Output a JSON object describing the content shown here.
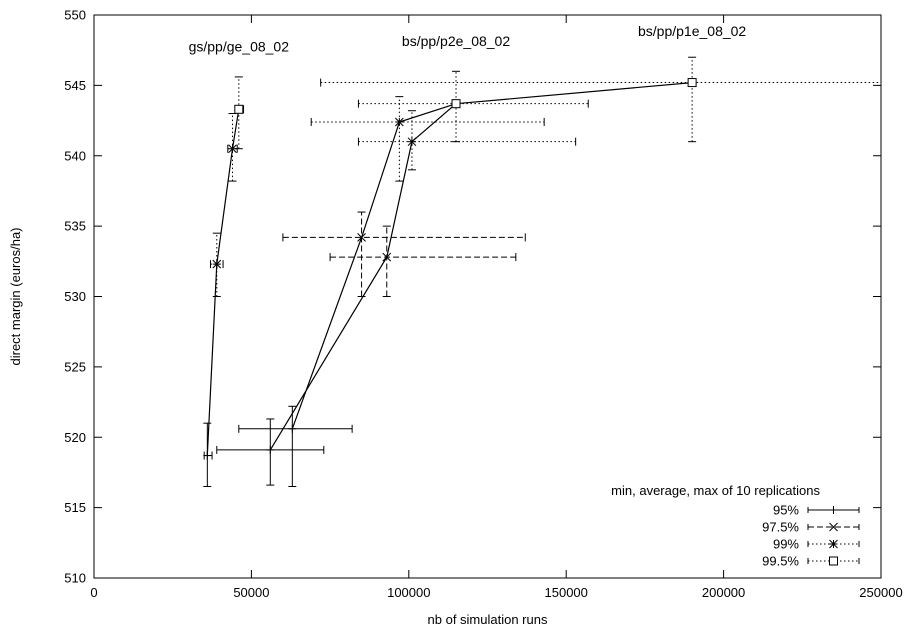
{
  "chart_data": {
    "type": "line",
    "title": "",
    "xlabel": "nb of simulation runs",
    "ylabel": "direct margin (euros/ha)",
    "xlim": [
      0,
      250000
    ],
    "ylim": [
      510,
      550
    ],
    "xticks": [
      "0",
      "50000",
      "100000",
      "150000",
      "200000",
      "250000"
    ],
    "yticks": [
      "510",
      "515",
      "520",
      "525",
      "530",
      "535",
      "540",
      "545",
      "550"
    ],
    "grid": false,
    "legend_position": "bottom-right",
    "legend_title": "min, average, max of 10 replications",
    "series": [
      {
        "name": "95%",
        "style": "solid",
        "marker": "plus",
        "points": [
          {
            "x": 36000,
            "y": 518.7,
            "xmin": 35000,
            "xmax": 37500,
            "ymin": 516.5,
            "ymax": 521.0
          },
          {
            "x": 56000,
            "y": 519.1,
            "xmin": 39000,
            "xmax": 73000,
            "ymin": 516.6,
            "ymax": 521.3
          },
          {
            "x": 63000,
            "y": 520.6,
            "xmin": 46000,
            "xmax": 82000,
            "ymin": 516.5,
            "ymax": 522.2
          }
        ]
      },
      {
        "name": "97.5%",
        "style": "dashed",
        "marker": "x",
        "points": [
          {
            "x": 85000,
            "y": 534.2,
            "xmin": 60000,
            "xmax": 137000,
            "ymin": 530.0,
            "ymax": 536.0
          },
          {
            "x": 93000,
            "y": 532.8,
            "xmin": 75000,
            "xmax": 134000,
            "ymin": 530.0,
            "ymax": 535.0
          }
        ]
      },
      {
        "name": "99%",
        "style": "dotted",
        "marker": "star",
        "points": [
          {
            "x": 39000,
            "y": 532.3,
            "xmin": 37000,
            "xmax": 41000,
            "ymin": 530.0,
            "ymax": 534.5
          },
          {
            "x": 44000,
            "y": 540.5,
            "xmin": 42500,
            "xmax": 45500,
            "ymin": 538.2,
            "ymax": 543.0
          },
          {
            "x": 97000,
            "y": 542.4,
            "xmin": 69000,
            "xmax": 143000,
            "ymin": 538.2,
            "ymax": 544.2
          },
          {
            "x": 101000,
            "y": 541.0,
            "xmin": 84000,
            "xmax": 153000,
            "ymin": 539.0,
            "ymax": 543.2
          }
        ]
      },
      {
        "name": "99.5%",
        "style": "dotted",
        "marker": "square",
        "points": [
          {
            "x": 46000,
            "y": 543.3,
            "xmin": 45000,
            "xmax": 47500,
            "ymin": 540.5,
            "ymax": 545.6
          },
          {
            "x": 115000,
            "y": 543.7,
            "xmin": 84000,
            "xmax": 157000,
            "ymin": 541.0,
            "ymax": 546.0
          },
          {
            "x": 190000,
            "y": 545.2,
            "xmin": 72000,
            "xmax": 250000,
            "ymin": 541.0,
            "ymax": 547.0
          }
        ]
      }
    ],
    "lines": [
      {
        "name": "gs/pp/ge_08_02",
        "points": [
          [
            36000,
            518.7
          ],
          [
            39000,
            532.3
          ],
          [
            44000,
            540.5
          ],
          [
            46000,
            543.3
          ]
        ]
      },
      {
        "name": "bs/pp/p2e_08_02",
        "points": [
          [
            63000,
            520.6
          ],
          [
            85000,
            534.2
          ],
          [
            97000,
            542.4
          ],
          [
            115000,
            543.7
          ],
          [
            190000,
            545.2
          ]
        ]
      },
      {
        "name": "bs/pp/p1e_08_02",
        "points": [
          [
            56000,
            519.1
          ],
          [
            93000,
            532.8
          ],
          [
            101000,
            541.0
          ],
          [
            115000,
            543.7
          ]
        ]
      }
    ],
    "annotations": [
      {
        "text": "gs/pp/ge_08_02",
        "x": 46000,
        "y": 547.4
      },
      {
        "text": "bs/pp/p2e_08_02",
        "x": 115000,
        "y": 547.8
      },
      {
        "text": "bs/pp/p1e_08_02",
        "x": 190000,
        "y": 548.5
      }
    ]
  }
}
